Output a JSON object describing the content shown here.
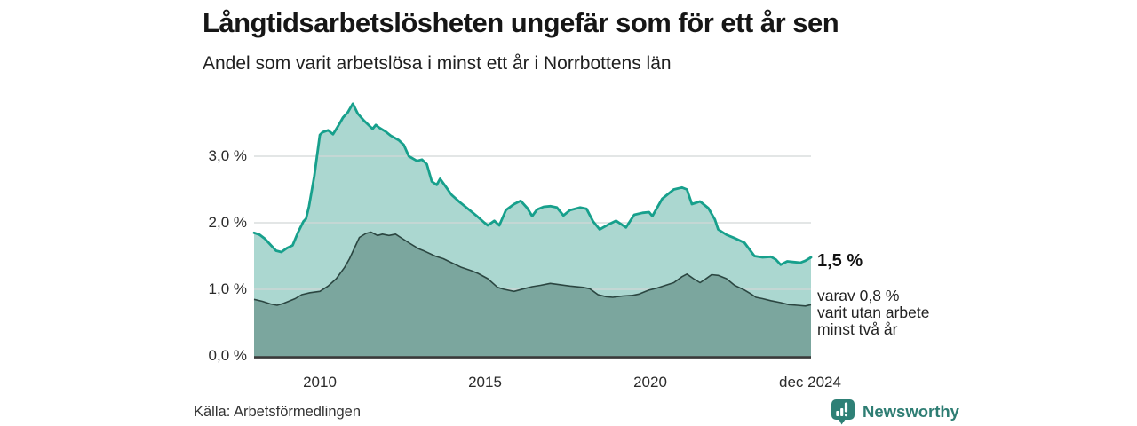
{
  "title": "Långtidsarbetslösheten ungefär som för ett år sen",
  "subtitle": "Andel som varit arbetslösa i minst ett år i Norrbottens län",
  "source": "Källa: Arbetsförmedlingen",
  "brand": {
    "name": "Newsworthy",
    "color": "#2e7d73"
  },
  "annotations": {
    "primary": "1,5 %",
    "secondary_lines": [
      "varav 0,8 %",
      "varit utan arbete",
      "minst två år"
    ]
  },
  "chart_data": {
    "type": "area",
    "title": "Långtidsarbetslösheten ungefär som för ett år sen",
    "subtitle": "Andel som varit arbetslösa i minst ett år i Norrbottens län",
    "x_domain": [
      2008.0,
      2024.92
    ],
    "ylim": [
      0,
      3.9
    ],
    "grid": "horizontal",
    "grid_color": "#d2d7d6",
    "axis_color": "#3a3a3a",
    "y_ticks": [
      {
        "value": 3.0,
        "label": "3,0 %"
      },
      {
        "value": 2.0,
        "label": "2,0 %"
      },
      {
        "value": 1.0,
        "label": "1,0 %"
      },
      {
        "value": 0.0,
        "label": "0,0 %"
      }
    ],
    "x_ticks": [
      {
        "value": 2010,
        "label": "2010"
      },
      {
        "value": 2015,
        "label": "2015"
      },
      {
        "value": 2020,
        "label": "2020"
      },
      {
        "value": 2024.9,
        "label": "dec 2024"
      }
    ],
    "series": [
      {
        "name": "Andel arbetslösa minst ett år",
        "end_label": "1,5 %",
        "fill": "#abd7d0",
        "line": "#17a08c",
        "x": [
          2008.0,
          2008.17,
          2008.33,
          2008.5,
          2008.67,
          2008.83,
          2009.0,
          2009.17,
          2009.33,
          2009.5,
          2009.58,
          2009.67,
          2009.83,
          2010.0,
          2010.08,
          2010.25,
          2010.4,
          2010.55,
          2010.7,
          2010.85,
          2011.0,
          2011.15,
          2011.35,
          2011.6,
          2011.7,
          2011.8,
          2012.0,
          2012.15,
          2012.4,
          2012.55,
          2012.7,
          2012.95,
          2013.1,
          2013.25,
          2013.4,
          2013.55,
          2013.65,
          2013.8,
          2014.0,
          2014.25,
          2014.5,
          2014.75,
          2015.0,
          2015.1,
          2015.3,
          2015.45,
          2015.65,
          2015.9,
          2016.1,
          2016.3,
          2016.45,
          2016.6,
          2016.8,
          2017.0,
          2017.2,
          2017.4,
          2017.6,
          2017.9,
          2018.1,
          2018.3,
          2018.5,
          2018.75,
          2019.0,
          2019.3,
          2019.55,
          2019.8,
          2020.0,
          2020.1,
          2020.4,
          2020.6,
          2020.75,
          2021.0,
          2021.15,
          2021.3,
          2021.55,
          2021.8,
          2022.0,
          2022.1,
          2022.35,
          2022.6,
          2022.9,
          2023.05,
          2023.2,
          2023.45,
          2023.7,
          2023.85,
          2024.0,
          2024.2,
          2024.4,
          2024.6,
          2024.75,
          2024.92
        ],
        "values": [
          1.85,
          1.82,
          1.76,
          1.67,
          1.58,
          1.56,
          1.62,
          1.66,
          1.85,
          2.02,
          2.06,
          2.25,
          2.7,
          3.32,
          3.36,
          3.39,
          3.33,
          3.45,
          3.58,
          3.66,
          3.79,
          3.64,
          3.53,
          3.41,
          3.47,
          3.43,
          3.37,
          3.31,
          3.24,
          3.17,
          3.0,
          2.93,
          2.95,
          2.88,
          2.62,
          2.57,
          2.66,
          2.56,
          2.42,
          2.31,
          2.21,
          2.11,
          2.0,
          1.96,
          2.03,
          1.96,
          2.19,
          2.28,
          2.33,
          2.22,
          2.1,
          2.2,
          2.24,
          2.25,
          2.23,
          2.11,
          2.19,
          2.23,
          2.21,
          2.02,
          1.9,
          1.97,
          2.03,
          1.93,
          2.12,
          2.15,
          2.16,
          2.1,
          2.36,
          2.44,
          2.5,
          2.53,
          2.5,
          2.28,
          2.32,
          2.22,
          2.05,
          1.9,
          1.82,
          1.77,
          1.7,
          1.6,
          1.5,
          1.48,
          1.49,
          1.45,
          1.37,
          1.42,
          1.41,
          1.4,
          1.43,
          1.48
        ]
      },
      {
        "name": "varav arbetslösa minst två år",
        "end_label": "0,8 %",
        "fill": "#7ba69e",
        "line": "#2b4641",
        "x": [
          2008.0,
          2008.25,
          2008.5,
          2008.7,
          2008.9,
          2009.0,
          2009.25,
          2009.45,
          2009.7,
          2010.0,
          2010.25,
          2010.5,
          2010.75,
          2010.9,
          2011.05,
          2011.2,
          2011.4,
          2011.55,
          2011.75,
          2011.9,
          2012.1,
          2012.3,
          2012.45,
          2012.7,
          2013.0,
          2013.2,
          2013.5,
          2013.75,
          2014.0,
          2014.3,
          2014.6,
          2014.8,
          2015.1,
          2015.4,
          2015.6,
          2015.9,
          2016.2,
          2016.45,
          2016.7,
          2017.0,
          2017.3,
          2017.6,
          2018.0,
          2018.2,
          2018.45,
          2018.7,
          2018.9,
          2019.2,
          2019.5,
          2019.7,
          2020.0,
          2020.25,
          2020.5,
          2020.75,
          2021.0,
          2021.15,
          2021.35,
          2021.55,
          2021.7,
          2021.9,
          2022.1,
          2022.35,
          2022.6,
          2022.9,
          2023.1,
          2023.25,
          2023.45,
          2023.7,
          2024.0,
          2024.25,
          2024.5,
          2024.75,
          2024.92
        ],
        "values": [
          0.85,
          0.82,
          0.78,
          0.76,
          0.79,
          0.81,
          0.86,
          0.92,
          0.95,
          0.97,
          1.05,
          1.16,
          1.33,
          1.46,
          1.62,
          1.78,
          1.84,
          1.86,
          1.81,
          1.83,
          1.81,
          1.83,
          1.78,
          1.7,
          1.61,
          1.57,
          1.5,
          1.46,
          1.4,
          1.33,
          1.28,
          1.24,
          1.16,
          1.03,
          1.0,
          0.97,
          1.01,
          1.04,
          1.06,
          1.09,
          1.07,
          1.05,
          1.03,
          1.01,
          0.92,
          0.89,
          0.88,
          0.9,
          0.91,
          0.93,
          0.99,
          1.02,
          1.06,
          1.1,
          1.19,
          1.23,
          1.16,
          1.1,
          1.15,
          1.22,
          1.21,
          1.16,
          1.06,
          0.99,
          0.93,
          0.88,
          0.86,
          0.83,
          0.8,
          0.77,
          0.76,
          0.75,
          0.77
        ]
      }
    ]
  }
}
